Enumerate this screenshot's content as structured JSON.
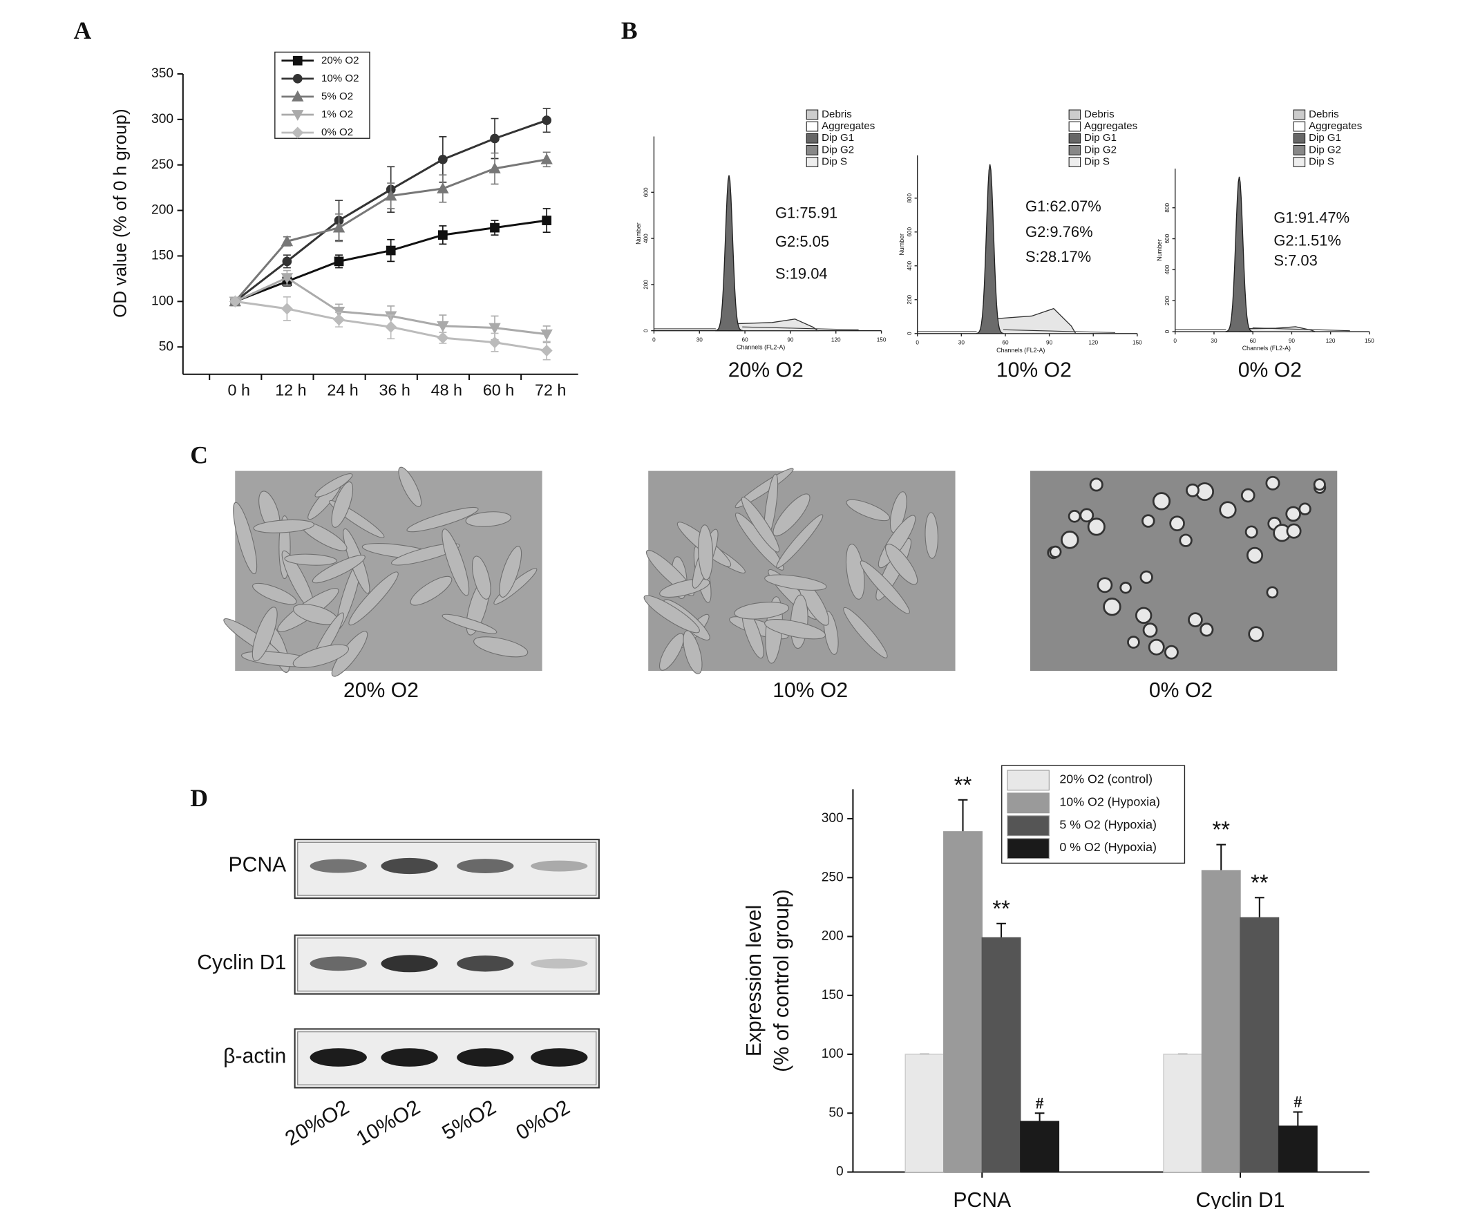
{
  "panel_labels": [
    "A",
    "B",
    "C",
    "D"
  ],
  "chart_data": [
    {
      "type": "line",
      "y_label": "OD value (% of 0 h group)",
      "categories": [
        "0 h",
        "12 h",
        "24 h",
        "36 h",
        "48 h",
        "60 h",
        "72 h"
      ],
      "ylim": [
        20,
        350
      ],
      "yticks": [
        50,
        100,
        150,
        200,
        250,
        300,
        350
      ],
      "legend": "top-left",
      "series": [
        {
          "name": "20% O2",
          "color": "#111111",
          "marker": "square",
          "values": [
            100,
            122,
            144,
            156,
            173,
            181,
            189
          ],
          "errors": [
            0,
            5,
            7,
            12,
            10,
            8,
            13
          ]
        },
        {
          "name": "10% O2",
          "color": "#333333",
          "marker": "circle",
          "values": [
            100,
            144,
            189,
            223,
            256,
            279,
            299
          ],
          "errors": [
            0,
            7,
            22,
            25,
            25,
            22,
            13
          ]
        },
        {
          "name": "5% O2",
          "color": "#777777",
          "marker": "triangle",
          "values": [
            100,
            166,
            181,
            216,
            224,
            246,
            256
          ],
          "errors": [
            0,
            5,
            15,
            14,
            15,
            17,
            8
          ]
        },
        {
          "name": "1% O2",
          "color": "#aaaaaa",
          "marker": "triangle-down",
          "values": [
            100,
            126,
            89,
            84,
            73,
            71,
            64
          ],
          "errors": [
            0,
            8,
            8,
            11,
            12,
            13,
            9
          ]
        },
        {
          "name": "0% O2",
          "color": "#bbbbbb",
          "marker": "diamond",
          "values": [
            100,
            92,
            80,
            72,
            60,
            55,
            46
          ],
          "errors": [
            0,
            13,
            8,
            13,
            6,
            10,
            10
          ]
        }
      ]
    },
    {
      "type": "bar",
      "y_label": [
        "Expression level",
        "(% of control group)"
      ],
      "categories": [
        "PCNA",
        "Cyclin D1"
      ],
      "ylim": [
        0,
        325
      ],
      "yticks": [
        0,
        50,
        100,
        150,
        200,
        250,
        300
      ],
      "legend": "top-center",
      "series": [
        {
          "name": "20% O2 (control)",
          "color": "#e8e8e8",
          "values": [
            100,
            100
          ],
          "errors": [
            0,
            0
          ],
          "significance": [
            null,
            null
          ]
        },
        {
          "name": "10% O2 (Hypoxia)",
          "color": "#9a9a9a",
          "values": [
            289,
            256
          ],
          "errors": [
            27,
            22
          ],
          "significance": [
            "**",
            "**"
          ]
        },
        {
          "name": "5 % O2 (Hypoxia)",
          "color": "#555555",
          "values": [
            199,
            216
          ],
          "errors": [
            12,
            17
          ],
          "significance": [
            "**",
            "**"
          ]
        },
        {
          "name": "0 % O2 (Hypoxia)",
          "color": "#1a1a1a",
          "values": [
            43,
            39
          ],
          "errors": [
            7,
            12
          ],
          "significance": [
            "#",
            "#"
          ]
        }
      ]
    }
  ],
  "flow_cytometry": {
    "legend": [
      "Debris",
      "Aggregates",
      "Dip G1",
      "Dip G2",
      "Dip S"
    ],
    "x_label": "Channels (FL2-A)",
    "y_label": "Number",
    "x_ticks": [
      "0",
      "30",
      "60",
      "90",
      "120",
      "150"
    ],
    "plots": [
      {
        "caption": "20% O2",
        "stats": [
          "G1:75.91",
          "G2:5.05",
          "S:19.04"
        ],
        "y_ticks": [
          "0",
          "200",
          "400",
          "600"
        ]
      },
      {
        "caption": "10% O2",
        "stats": [
          "G1:62.07%",
          "G2:9.76%",
          "S:28.17%"
        ],
        "y_ticks": [
          "0",
          "200",
          "400",
          "600",
          "800"
        ]
      },
      {
        "caption": "0% O2",
        "stats": [
          "G1:91.47%",
          "G2:1.51%",
          "S:7.03"
        ],
        "y_ticks": [
          "0",
          "200",
          "400",
          "600",
          "800"
        ]
      }
    ]
  },
  "micrographs": {
    "captions": [
      "20% O2",
      "10% O2",
      "0% O2"
    ]
  },
  "western_blot": {
    "proteins": [
      "PCNA",
      "Cyclin D1",
      "β-actin"
    ],
    "lanes": [
      "20%O2",
      "10%O2",
      "5%O2",
      "0%O2"
    ]
  }
}
